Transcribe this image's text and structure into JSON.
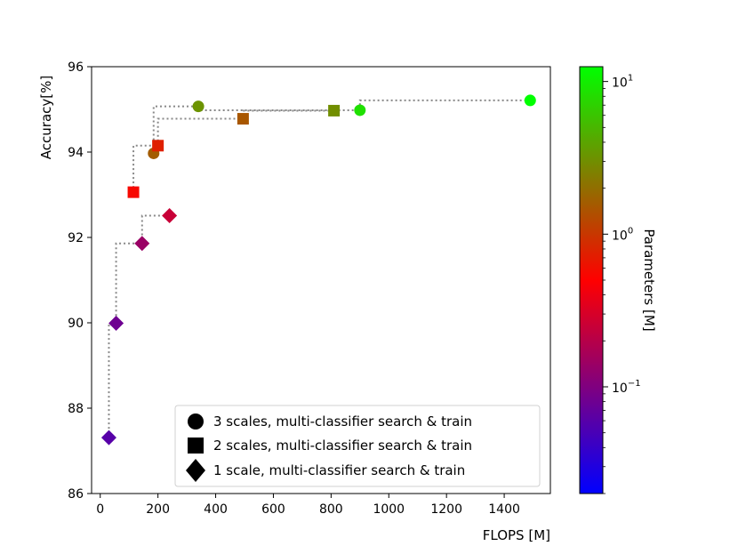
{
  "chart_data": {
    "type": "scatter",
    "xlabel": "FLOPS [M]",
    "ylabel": "Accuracy[%]",
    "xlim": [
      -30,
      1560
    ],
    "ylim": [
      86,
      96
    ],
    "x_ticks": [
      0,
      200,
      400,
      600,
      800,
      1000,
      1200,
      1400
    ],
    "y_ticks": [
      86,
      88,
      90,
      92,
      94,
      96
    ],
    "x_tick_labels": [
      "0",
      "200",
      "400",
      "600",
      "800",
      "1000",
      "1200",
      "1400"
    ],
    "y_tick_labels": [
      "86",
      "88",
      "90",
      "92",
      "94",
      "96"
    ],
    "grid": false,
    "legend_position": "lower-right",
    "series": [
      {
        "name": "3 scales, multi-classifier search & train",
        "marker": "circle",
        "points": [
          {
            "x": 185,
            "y": 93.97,
            "params": 1.6
          },
          {
            "x": 340,
            "y": 95.07,
            "params": 3.2
          },
          {
            "x": 900,
            "y": 94.98,
            "params": 8.5
          },
          {
            "x": 1490,
            "y": 95.21,
            "params": 12.5
          }
        ]
      },
      {
        "name": "2 scales, multi-classifier search & train",
        "marker": "square",
        "points": [
          {
            "x": 115,
            "y": 93.06,
            "params": 0.55
          },
          {
            "x": 200,
            "y": 94.15,
            "params": 0.75
          },
          {
            "x": 495,
            "y": 94.78,
            "params": 1.5
          },
          {
            "x": 810,
            "y": 94.97,
            "params": 3.0
          }
        ]
      },
      {
        "name": "1 scale, multi-classifier search & train",
        "marker": "diamond",
        "points": [
          {
            "x": 30,
            "y": 87.31,
            "params": 0.06
          },
          {
            "x": 55,
            "y": 89.99,
            "params": 0.08
          },
          {
            "x": 145,
            "y": 91.86,
            "params": 0.14
          },
          {
            "x": 240,
            "y": 92.51,
            "params": 0.25
          }
        ]
      }
    ],
    "colorbar": {
      "label": "Parameters [M]",
      "scale": "log",
      "range": [
        0.02,
        12.5
      ],
      "colors": [
        "#0000ff",
        "#ff0000",
        "#00ff00"
      ],
      "tick_values": [
        0.1,
        1,
        10
      ],
      "tick_labels": [
        {
          "base": "10",
          "exp": "−1"
        },
        {
          "base": "10",
          "exp": "0"
        },
        {
          "base": "10",
          "exp": "1"
        }
      ]
    }
  }
}
